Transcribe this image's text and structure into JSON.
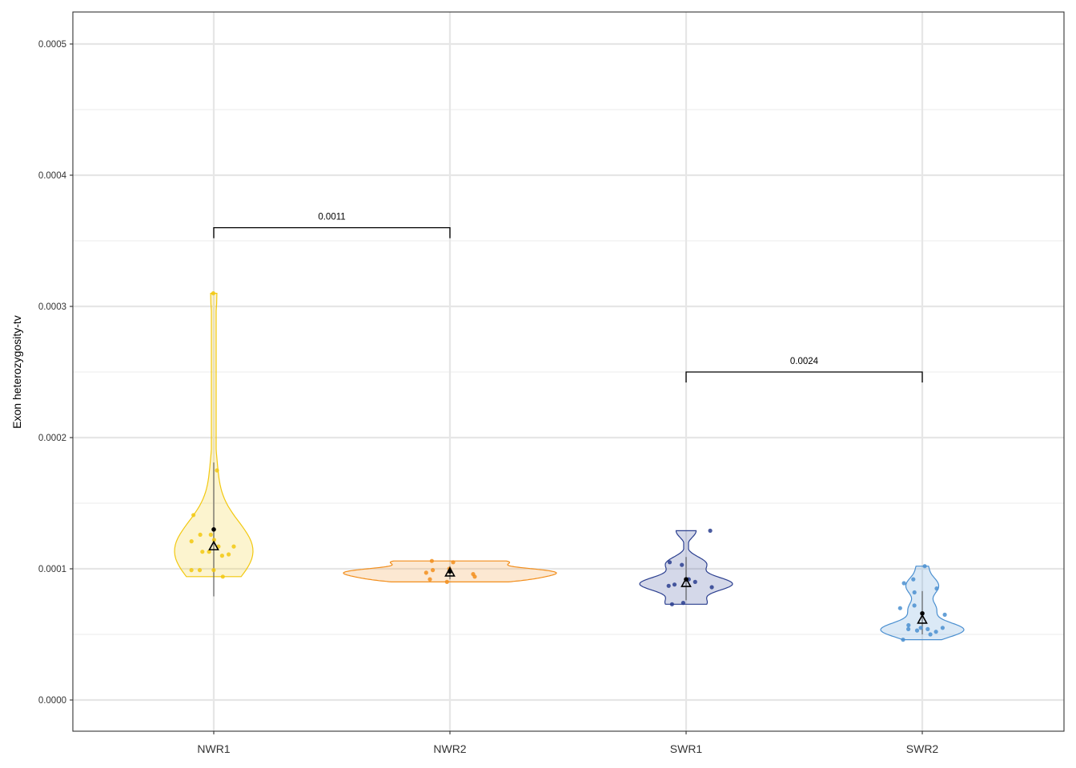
{
  "chart_data": {
    "type": "violin",
    "title": "",
    "xlabel": "",
    "ylabel": "Exon heterozygosity-tv",
    "ylim": [
      -2.5e-05,
      0.00052
    ],
    "yticks": [
      0,
      0.0001,
      0.0002,
      0.0003,
      0.0004,
      0.0005
    ],
    "ytick_labels": [
      "0.0000",
      "0.0001",
      "0.0002",
      "0.0003",
      "0.0004",
      "0.0005"
    ],
    "categories": [
      "NWR1",
      "NWR2",
      "SWR1",
      "SWR2"
    ],
    "grid": true,
    "legend": "none",
    "groups": [
      {
        "name": "NWR1",
        "color": "#F2C80F",
        "mean": 0.00013,
        "median": 0.000117,
        "whisker": [
          7.9e-05,
          0.000181
        ],
        "violin_range": [
          9.4e-05,
          0.00031
        ],
        "points": [
          0.00031,
          0.000175,
          0.000141,
          0.000126,
          0.000126,
          0.000122,
          0.000121,
          0.000117,
          0.000117,
          0.000113,
          0.000113,
          0.000111,
          0.00011,
          9.9e-05,
          9.9e-05,
          9.9e-05,
          9.4e-05
        ]
      },
      {
        "name": "NWR2",
        "color": "#F28E1C",
        "mean": 9.8e-05,
        "median": 9.7e-05,
        "whisker": [
          9.2e-05,
          0.000102
        ],
        "violin_range": [
          9e-05,
          0.000106
        ],
        "points": [
          0.000106,
          0.000105,
          0.0001,
          9.9e-05,
          9.7e-05,
          9.6e-05,
          9.4e-05,
          9.2e-05,
          9e-05
        ]
      },
      {
        "name": "SWR1",
        "color": "#2A3E8F",
        "mean": 9.2e-05,
        "median": 8.9e-05,
        "whisker": [
          7.6e-05,
          0.000109
        ],
        "violin_range": [
          7.3e-05,
          0.000129
        ],
        "points": [
          0.000129,
          0.000105,
          0.000103,
          9.2e-05,
          9e-05,
          8.8e-05,
          8.7e-05,
          8.6e-05,
          7.4e-05,
          7.3e-05
        ]
      },
      {
        "name": "SWR2",
        "color": "#4A8FD0",
        "mean": 6.6e-05,
        "median": 6.1e-05,
        "whisker": [
          5e-05,
          8.3e-05
        ],
        "violin_range": [
          4.6e-05,
          0.000102
        ],
        "points": [
          0.000102,
          9.2e-05,
          8.9e-05,
          8.5e-05,
          8.2e-05,
          7.2e-05,
          7e-05,
          6.5e-05,
          5.7e-05,
          5.5e-05,
          5.5e-05,
          5.4e-05,
          5.4e-05,
          5.3e-05,
          5.2e-05,
          5e-05,
          4.6e-05
        ]
      }
    ],
    "comparisons": [
      {
        "groups": [
          "NWR1",
          "NWR2"
        ],
        "label": "0.0011",
        "y": 0.00036,
        "tick_bottom": 0.000352
      },
      {
        "groups": [
          "SWR1",
          "SWR2"
        ],
        "label": "0.0024",
        "y": 0.00025,
        "tick_bottom": 0.000242
      }
    ]
  }
}
